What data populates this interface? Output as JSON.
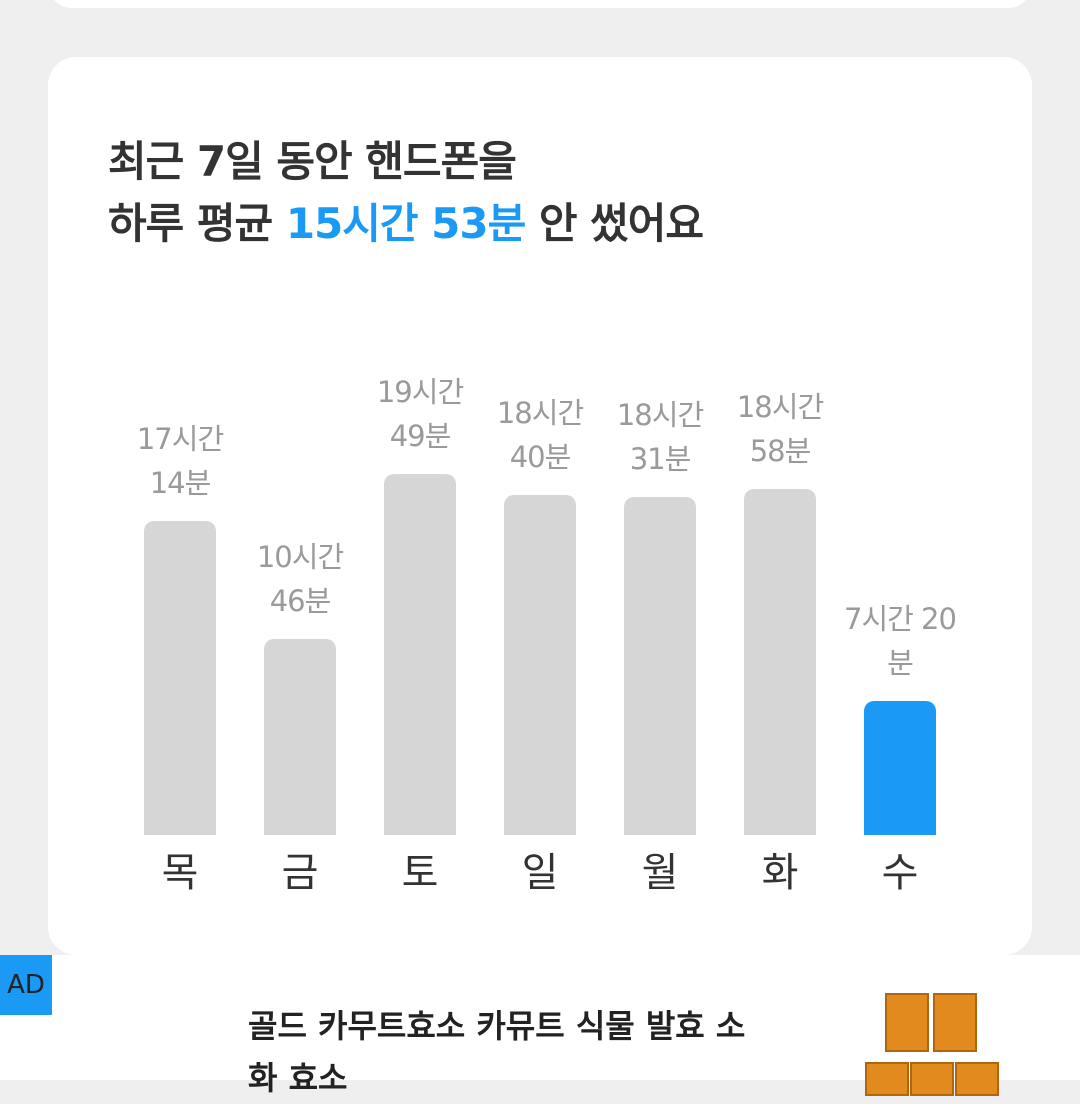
{
  "chart_data": {
    "type": "bar",
    "title_line1": "최근 7일 동안 핸드폰을",
    "title_line2_before": "하루 평균",
    "title_line2_highlight": "15시간 53분",
    "title_line2_after": "안 썼어요",
    "categories": [
      "목",
      "금",
      "토",
      "일",
      "월",
      "화",
      "수"
    ],
    "values": [
      1034,
      646,
      1189,
      1120,
      1111,
      1138,
      440
    ],
    "value_labels": [
      "17시간 14분",
      "10시간 46분",
      "19시간 49분",
      "18시간 40분",
      "18시간 31분",
      "18시간 58분",
      "7시간 20분"
    ],
    "color": "#d6d6d6",
    "highlight_color": "#1a9af5",
    "highlight_index": 6
  },
  "ad": {
    "badge": "AD",
    "title": "골드 카무트효소 카뮤트 식물 발효 소화 효소"
  }
}
